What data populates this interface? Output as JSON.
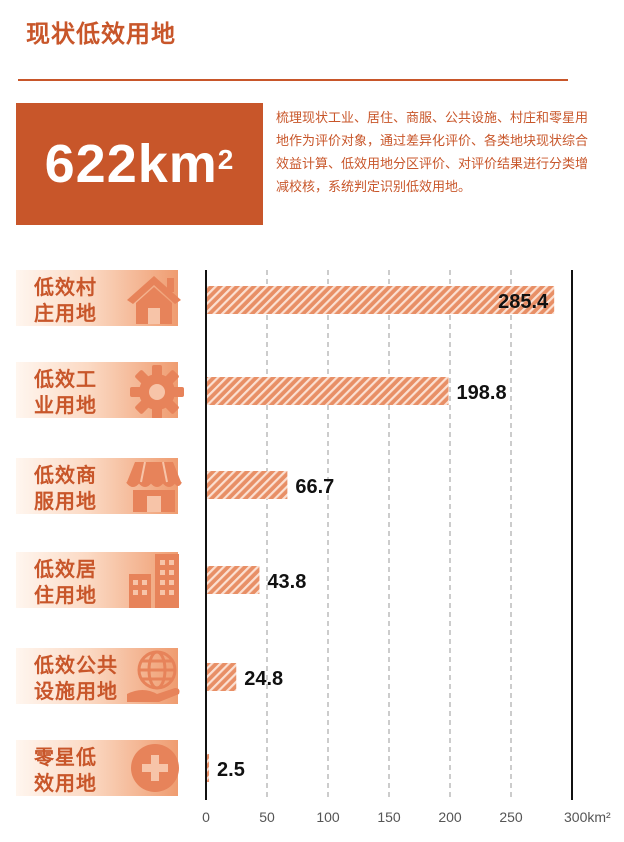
{
  "header": {
    "title": "现状低效用地"
  },
  "summary": {
    "total_value": "622km",
    "total_exponent": "2",
    "description": "梳理现状工业、居住、商服、公共设施、村庄和零星用地作为评价对象，通过差异化评价、各类地块现状综合效益计算、低效用地分区评价、对评价结果进行分类增减校核，系统判定识别低效用地。"
  },
  "rows": [
    {
      "label_line1": "低效村",
      "label_line2": "庄用地",
      "icon": "house-icon"
    },
    {
      "label_line1": "低效工",
      "label_line2": "业用地",
      "icon": "gear-icon"
    },
    {
      "label_line1": "低效商",
      "label_line2": "服用地",
      "icon": "shop-awning-icon"
    },
    {
      "label_line1": "低效居",
      "label_line2": "住用地",
      "icon": "building-icon"
    },
    {
      "label_line1": "低效公共",
      "label_line2": "设施用地",
      "icon": "globe-hand-icon"
    },
    {
      "label_line1": "零星低",
      "label_line2": "效用地",
      "icon": "plus-circle-icon"
    }
  ],
  "chart_data": {
    "type": "bar",
    "orientation": "horizontal",
    "categories": [
      "低效村庄用地",
      "低效工业用地",
      "低效商服用地",
      "低效居住用地",
      "低效公共设施用地",
      "零星低效用地"
    ],
    "values": [
      285.4,
      198.8,
      66.7,
      43.8,
      24.8,
      2.5
    ],
    "data_labels": [
      "285.4",
      "198.8",
      "66.7",
      "43.8",
      "24.8",
      "2.5"
    ],
    "xlim": [
      0,
      300
    ],
    "xticks": [
      "0",
      "50",
      "100",
      "150",
      "200",
      "250",
      "300km²"
    ],
    "tick_values": [
      0,
      50,
      100,
      150,
      200,
      250,
      300
    ],
    "grid": "dashed vertical",
    "bar_color": "#e88f66",
    "bar_stripe_color": "#fbe0d2",
    "accent_color": "#c8562a"
  }
}
